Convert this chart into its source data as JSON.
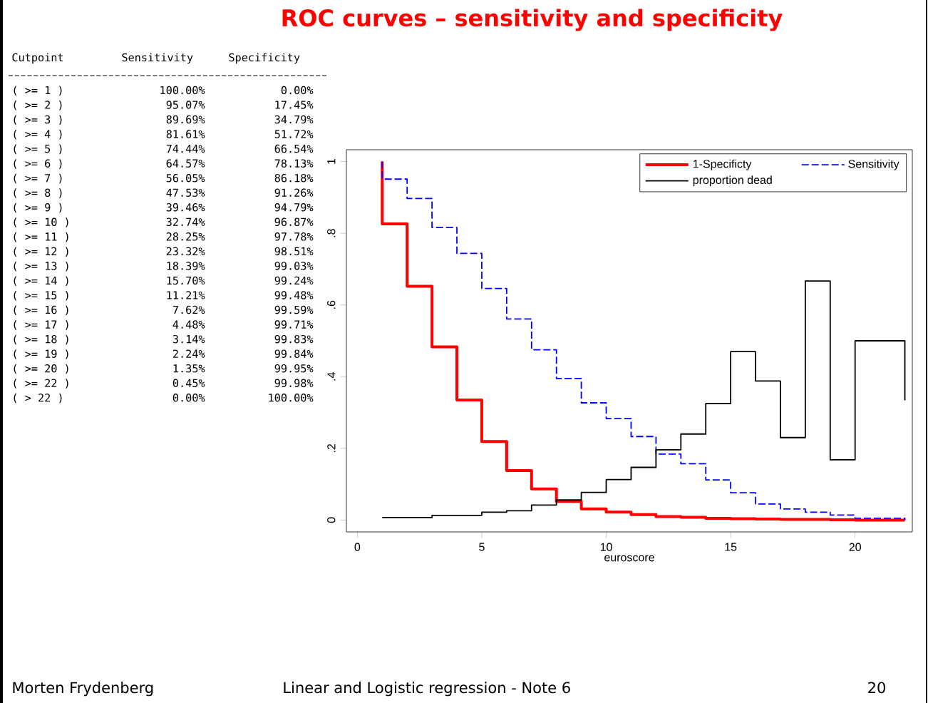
{
  "chart_data": {
    "type": "step",
    "title": "ROC curves – sensitivity and specificity",
    "xlabel": "euroscore",
    "xlim": [
      -0.44,
      22.3
    ],
    "ylim": [
      -0.033,
      1.033
    ],
    "xticks": [
      0,
      5,
      10,
      15,
      20
    ],
    "yticks": [
      0,
      {
        "value": 0.2,
        "label": ".2"
      },
      {
        "value": 0.4,
        "label": ".4"
      },
      {
        "value": 0.6,
        "label": ".6"
      },
      {
        "value": 0.8,
        "label": ".8"
      },
      1
    ],
    "legend": "top right",
    "grid": false,
    "series": [
      {
        "name": "1-Specificty",
        "color": "#ff0000",
        "line_style": "solid",
        "x": [
          1,
          1,
          2,
          3,
          4,
          5,
          6,
          7,
          8,
          9,
          10,
          11,
          12,
          13,
          14,
          15,
          16,
          17,
          18,
          19,
          20,
          22
        ],
        "values": [
          1.0,
          0.826,
          0.652,
          0.483,
          0.335,
          0.219,
          0.138,
          0.087,
          0.052,
          0.031,
          0.022,
          0.015,
          0.01,
          0.008,
          0.005,
          0.004,
          0.003,
          0.002,
          0.002,
          0.001,
          0.0,
          0.0
        ]
      },
      {
        "name": "Sensitivity",
        "color": "#0000ff",
        "line_style": "dashed",
        "x": [
          1,
          1,
          2,
          3,
          4,
          5,
          6,
          7,
          8,
          9,
          10,
          11,
          12,
          13,
          14,
          15,
          16,
          17,
          18,
          19,
          20,
          22
        ],
        "values": [
          1.0,
          0.951,
          0.897,
          0.816,
          0.744,
          0.646,
          0.561,
          0.475,
          0.395,
          0.327,
          0.283,
          0.233,
          0.184,
          0.157,
          0.112,
          0.076,
          0.045,
          0.031,
          0.022,
          0.014,
          0.005,
          0.0
        ]
      },
      {
        "name": "proportion dead",
        "color": "#000000",
        "line_style": "solid",
        "x": [
          1,
          2,
          3,
          4,
          5,
          6,
          7,
          8,
          9,
          10,
          11,
          12,
          13,
          14,
          15,
          16,
          17,
          18,
          19,
          20,
          22
        ],
        "values": [
          0.007,
          0.007,
          0.013,
          0.013,
          0.022,
          0.026,
          0.042,
          0.056,
          0.077,
          0.113,
          0.147,
          0.196,
          0.24,
          0.325,
          0.47,
          0.388,
          0.23,
          0.667,
          0.168,
          0.5,
          0.334
        ]
      }
    ],
    "annotations": [
      "Cutpoint",
      "Sensitivity",
      "Specificity",
      "( >= 1 )",
      "100.00%",
      "0.00%",
      "( >= 2 )",
      "95.07%",
      "17.45%",
      "( >= 3 )",
      "89.69%",
      "34.79%",
      "( >= 4 )",
      "81.61%",
      "51.72%",
      "( >= 5 )",
      "74.44%",
      "66.54%",
      "( >= 6 )",
      "64.57%",
      "78.13%",
      "( >= 7 )",
      "56.05%",
      "86.18%",
      "( >= 8 )",
      "47.53%",
      "91.26%",
      "( >= 9 )",
      "39.46%",
      "94.79%",
      "( >= 10 )",
      "32.74%",
      "96.87%",
      "( >= 11 )",
      "28.25%",
      "97.78%",
      "( >= 12 )",
      "23.32%",
      "98.51%",
      "( >= 13 )",
      "18.39%",
      "99.03%",
      "( >= 14 )",
      "15.70%",
      "99.24%",
      "( >= 15 )",
      "11.21%",
      "99.48%",
      "( >= 16 )",
      "7.62%",
      "99.59%",
      "( >= 17 )",
      "4.48%",
      "99.71%",
      "( >= 18 )",
      "3.14%",
      "99.83%",
      "( >= 19 )",
      "2.24%",
      "99.84%",
      "( >= 20 )",
      "1.35%",
      "99.95%",
      "( >= 22 )",
      "0.45%",
      "99.98%",
      "( >  22 )",
      "0.00%",
      "100.00%",
      "Morten Frydenberg",
      "Linear and Logistic regression - Note 6",
      "20"
    ]
  }
}
